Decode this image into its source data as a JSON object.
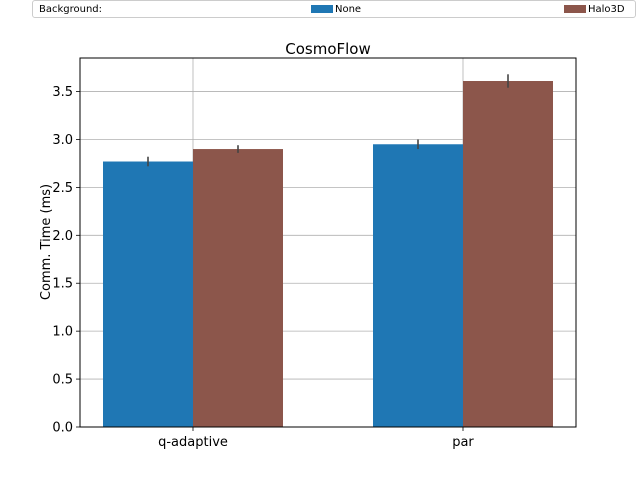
{
  "legend": {
    "title": "Background:",
    "entries": [
      {
        "label": "None",
        "color": "#1f77b4"
      },
      {
        "label": "Halo3D",
        "color": "#8c564b"
      }
    ]
  },
  "chart_data": {
    "type": "bar",
    "title": "CosmoFlow",
    "xlabel": "",
    "ylabel": "Comm. Time (ms)",
    "categories": [
      "q-adaptive",
      "par"
    ],
    "series": [
      {
        "name": "None",
        "color": "#1f77b4",
        "values": [
          2.77,
          2.95
        ],
        "errors": [
          0.05,
          0.05
        ]
      },
      {
        "name": "Halo3D",
        "color": "#8c564b",
        "values": [
          2.9,
          3.61
        ],
        "errors": [
          0.04,
          0.07
        ]
      }
    ],
    "ylim": [
      0,
      3.85
    ],
    "yticks": [
      "0.0",
      "0.5",
      "1.0",
      "1.5",
      "2.0",
      "2.5",
      "3.0",
      "3.5"
    ],
    "grid": true,
    "legend_position": "top"
  }
}
